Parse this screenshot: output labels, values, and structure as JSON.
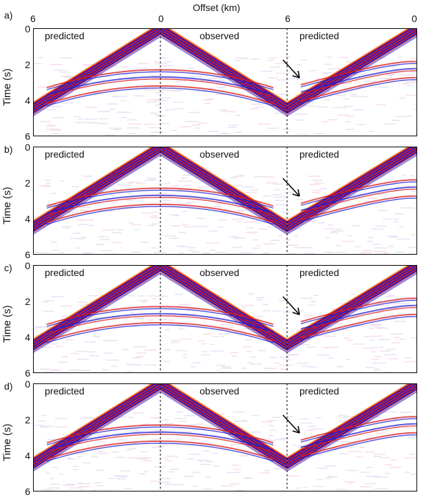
{
  "figure": {
    "title": "Offset (km)",
    "top_ticks": [
      "6",
      "0",
      "6",
      "0"
    ]
  },
  "panels": [
    {
      "letter": "a)",
      "ylabel": "Time (s)",
      "yticks": [
        "0",
        "2",
        "4",
        "6"
      ],
      "labels": [
        "predicted",
        "observed",
        "predicted"
      ]
    },
    {
      "letter": "b)",
      "ylabel": "Time (s)",
      "yticks": [
        "0",
        "2",
        "4",
        "6"
      ],
      "labels": [
        "predicted",
        "observed",
        "predicted"
      ]
    },
    {
      "letter": "c)",
      "ylabel": "Time (s)",
      "yticks": [
        "0",
        "2",
        "4",
        "6"
      ],
      "labels": [
        "predicted",
        "observed",
        "predicted"
      ]
    },
    {
      "letter": "d)",
      "ylabel": "Time (s)",
      "yticks": [
        "0",
        "2",
        "4",
        "6"
      ],
      "labels": [
        "predicted",
        "observed",
        "predicted"
      ]
    }
  ],
  "colors": {
    "positive": "#d7191c",
    "negative": "#1f1fd0",
    "axis": "#000000"
  },
  "arrow_icon": "arrow-down-right-icon"
}
